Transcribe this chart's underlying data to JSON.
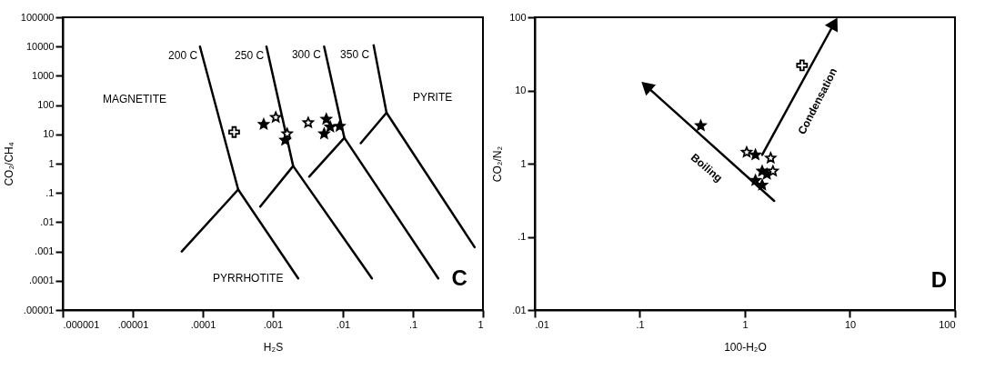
{
  "chart_data": [
    {
      "type": "scatter",
      "xlabel": "H₂S",
      "ylabel": "CO₂/CH₄",
      "log": "xy",
      "grid": false,
      "marker": "star",
      "xlim": [
        1e-06,
        1
      ],
      "ylim": [
        1e-05,
        100000
      ],
      "xticks": [
        {
          "value": 1e-06,
          "label": ".000001"
        },
        {
          "value": 1e-05,
          "label": ".00001"
        },
        {
          "value": 0.0001,
          "label": ".0001"
        },
        {
          "value": 0.001,
          "label": ".001"
        },
        {
          "value": 0.01,
          "label": ".01"
        },
        {
          "value": 0.1,
          "label": ".1"
        },
        1
      ],
      "yticks": [
        {
          "value": 1e-05,
          "label": ".00001"
        },
        {
          "value": 0.0001,
          "label": ".0001"
        },
        {
          "value": 0.001,
          "label": ".001"
        },
        {
          "value": 0.01,
          "label": ".01"
        },
        {
          "value": 0.1,
          "label": ".1"
        },
        1,
        10,
        100,
        1000,
        10000,
        100000
      ],
      "series": [
        {
          "type": "line",
          "color": "#000000",
          "marker": "none",
          "x": [
            9.1e-05,
            0.00032,
            0.0023
          ],
          "values": [
            10000,
            0.13,
            0.00012
          ]
        },
        {
          "type": "line",
          "color": "#000000",
          "marker": "none",
          "x": [
            5e-05,
            0.00032
          ],
          "values": [
            0.001,
            0.13
          ]
        },
        {
          "type": "line",
          "color": "#000000",
          "marker": "none",
          "x": [
            0.00081,
            0.00195,
            0.026
          ],
          "values": [
            10000,
            0.83,
            0.00012
          ]
        },
        {
          "type": "line",
          "color": "#000000",
          "marker": "none",
          "x": [
            0.00066,
            0.00195
          ],
          "values": [
            0.034,
            0.83
          ]
        },
        {
          "type": "line",
          "color": "#000000",
          "marker": "none",
          "x": [
            0.0054,
            0.0105,
            0.23
          ],
          "values": [
            10000,
            7.6,
            0.00012
          ]
        },
        {
          "type": "line",
          "color": "#000000",
          "marker": "none",
          "x": [
            0.0033,
            0.0105
          ],
          "values": [
            0.36,
            7.6
          ]
        },
        {
          "type": "line",
          "color": "#000000",
          "marker": "none",
          "x": [
            0.0275,
            0.042,
            0.76
          ],
          "values": [
            11000,
            55,
            0.0014
          ]
        },
        {
          "type": "line",
          "color": "#000000",
          "marker": "none",
          "x": [
            0.018,
            0.042
          ],
          "values": [
            5.0,
            55
          ]
        },
        {
          "type": "scatter",
          "color": "#000000",
          "x": [
            0.00074,
            0.0015,
            0.0058,
            0.0054,
            0.0066,
            0.009
          ],
          "values": [
            22,
            6.3,
            33,
            10.5,
            18,
            19
          ]
        },
        {
          "type": "scatter",
          "color": "#ffffff",
          "x": [
            0.0011,
            0.0016,
            0.0032
          ],
          "values": [
            38,
            10.5,
            25
          ]
        },
        {
          "type": "scatter",
          "color": "#ffffff",
          "marker": "cross",
          "x": [
            0.00028
          ],
          "values": [
            12
          ]
        }
      ],
      "annotations": [
        "200 C",
        "250 C",
        "300 C",
        "350 C",
        "MAGNETITE",
        "PYRITE",
        "PYRRHOTITE",
        "C"
      ]
    },
    {
      "type": "scatter",
      "xlabel": "100-H₂O",
      "ylabel": "CO₂/N₂",
      "log": "xy",
      "grid": false,
      "marker": "star",
      "xlim": [
        0.01,
        100
      ],
      "ylim": [
        0.01,
        100
      ],
      "xticks": [
        {
          "value": 0.01,
          "label": ".01"
        },
        {
          "value": 0.1,
          "label": ".1"
        },
        1,
        10,
        100
      ],
      "yticks": [
        {
          "value": 0.01,
          "label": ".01"
        },
        {
          "value": 0.1,
          "label": ".1"
        },
        1,
        10,
        100
      ],
      "series": [
        {
          "type": "line",
          "color": "#000000",
          "marker": "triangle",
          "x": [
            1.9,
            0.115
          ],
          "values": [
            0.31,
            11.5
          ]
        },
        {
          "type": "line",
          "color": "#000000",
          "marker": "triangle",
          "x": [
            1.46,
            7.1
          ],
          "values": [
            1.32,
            83
          ]
        },
        {
          "type": "scatter",
          "color": "#000000",
          "x": [
            0.38,
            1.26,
            1.46,
            1.26,
            1.62,
            1.46
          ],
          "values": [
            3.3,
            1.32,
            0.79,
            0.59,
            0.72,
            0.51
          ]
        },
        {
          "type": "scatter",
          "color": "#ffffff",
          "x": [
            1.04,
            1.76,
            1.85
          ],
          "values": [
            1.43,
            1.19,
            0.79
          ]
        },
        {
          "type": "scatter",
          "color": "#ffffff",
          "marker": "cross",
          "x": [
            3.5
          ],
          "values": [
            22
          ]
        }
      ],
      "annotations": [
        "Boiling",
        "Condensation",
        "D"
      ]
    }
  ]
}
